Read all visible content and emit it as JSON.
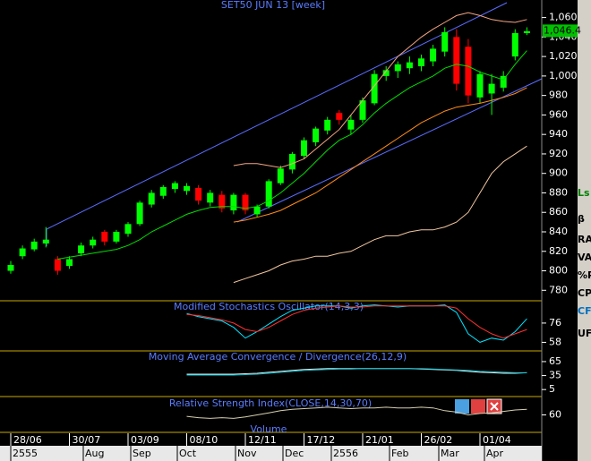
{
  "chart_data": [
    {
      "type": "candlestick",
      "title": "SET50 JUN 13   [week]",
      "categories": [
        "28/06",
        null,
        null,
        null,
        null,
        "30/07",
        null,
        null,
        null,
        null,
        "03/09",
        null,
        null,
        null,
        null,
        "08/10",
        null,
        null,
        null,
        null,
        "12/11",
        null,
        null,
        null,
        null,
        "17/12",
        null,
        null,
        null,
        null,
        "21/01",
        null,
        null,
        null,
        null,
        "26/02",
        null,
        null,
        null,
        null,
        "01/04",
        null,
        null,
        null,
        null
      ],
      "month_labels": [
        "2555",
        "Aug",
        "Sep",
        "Oct",
        "Nov",
        "Dec",
        "2556",
        "Feb",
        "Mar",
        "Apr"
      ],
      "open": [
        800,
        815,
        822,
        828,
        812,
        805,
        818,
        826,
        840,
        830,
        838,
        848,
        868,
        877,
        884,
        882,
        885,
        870,
        878,
        862,
        878,
        858,
        866,
        890,
        904,
        918,
        932,
        944,
        962,
        945,
        955,
        972,
        1000,
        1005,
        1008,
        1010,
        1015,
        1025,
        1040,
        1030,
        978,
        982,
        988,
        1020,
        1044
      ],
      "high": [
        810,
        826,
        833,
        845,
        815,
        815,
        829,
        835,
        842,
        842,
        850,
        872,
        883,
        888,
        892,
        890,
        888,
        883,
        882,
        880,
        880,
        868,
        894,
        908,
        922,
        937,
        948,
        958,
        965,
        960,
        978,
        1006,
        1010,
        1015,
        1020,
        1022,
        1032,
        1050,
        1048,
        1038,
        1005,
        1002,
        1005,
        1048,
        1050
      ],
      "low": [
        797,
        812,
        820,
        824,
        796,
        802,
        815,
        823,
        826,
        828,
        835,
        846,
        865,
        874,
        880,
        878,
        868,
        866,
        860,
        858,
        858,
        855,
        864,
        888,
        900,
        915,
        928,
        940,
        950,
        940,
        952,
        970,
        995,
        998,
        1002,
        1005,
        1010,
        1020,
        985,
        972,
        972,
        960,
        984,
        1016,
        1042
      ],
      "close": [
        806,
        823,
        830,
        832,
        800,
        812,
        826,
        832,
        830,
        840,
        848,
        870,
        880,
        886,
        890,
        887,
        872,
        880,
        864,
        878,
        862,
        866,
        892,
        905,
        920,
        934,
        946,
        955,
        955,
        955,
        975,
        1002,
        1006,
        1012,
        1014,
        1018,
        1028,
        1045,
        992,
        980,
        1002,
        992,
        1000,
        1044,
        1046
      ],
      "up_color": "#00ff00",
      "down_color": "#ff0000",
      "series": [
        {
          "color": "#00dd00",
          "values": [
            null,
            null,
            null,
            null,
            812,
            814,
            816,
            818,
            820,
            822,
            826,
            832,
            840,
            846,
            852,
            858,
            862,
            865,
            866,
            866,
            864,
            866,
            872,
            880,
            890,
            900,
            912,
            924,
            934,
            940,
            950,
            962,
            972,
            980,
            988,
            994,
            1000,
            1008,
            1012,
            1010,
            1004,
            1000,
            996,
            1012,
            1026
          ]
        },
        {
          "color": "#f4a582",
          "values": [
            null,
            null,
            null,
            null,
            null,
            null,
            null,
            null,
            null,
            null,
            null,
            null,
            null,
            null,
            null,
            null,
            null,
            null,
            null,
            908,
            910,
            910,
            908,
            906,
            910,
            915,
            925,
            935,
            945,
            960,
            975,
            990,
            1005,
            1020,
            1030,
            1040,
            1048,
            1055,
            1062,
            1065,
            1062,
            1058,
            1056,
            1055,
            1058
          ]
        },
        {
          "color": "#ff8c1a",
          "values": [
            null,
            null,
            null,
            null,
            null,
            null,
            null,
            null,
            null,
            null,
            null,
            null,
            null,
            null,
            null,
            null,
            null,
            null,
            null,
            850,
            852,
            855,
            858,
            862,
            868,
            874,
            880,
            888,
            896,
            904,
            912,
            920,
            928,
            936,
            944,
            952,
            958,
            964,
            968,
            970,
            972,
            975,
            978,
            982,
            988
          ]
        },
        {
          "color": "#f2c6a0",
          "values": [
            null,
            null,
            null,
            null,
            null,
            null,
            null,
            null,
            null,
            null,
            null,
            null,
            null,
            null,
            null,
            null,
            null,
            null,
            null,
            788,
            792,
            796,
            800,
            806,
            810,
            812,
            815,
            815,
            818,
            820,
            826,
            832,
            836,
            836,
            840,
            842,
            842,
            845,
            850,
            860,
            880,
            900,
            912,
            920,
            928
          ]
        }
      ],
      "ylim": [
        772,
        1078
      ],
      "yticks": [
        {
          "value": 780,
          "label": "780"
        },
        {
          "value": 800,
          "label": "800"
        },
        {
          "value": 820,
          "label": "820"
        },
        {
          "value": 840,
          "label": "840"
        },
        {
          "value": 860,
          "label": "860"
        },
        {
          "value": 880,
          "label": "880"
        },
        {
          "value": 900,
          "label": "900"
        },
        {
          "value": 920,
          "label": "920"
        },
        {
          "value": 940,
          "label": "940"
        },
        {
          "value": 960,
          "label": "960"
        },
        {
          "value": 980,
          "label": "980"
        },
        {
          "value": 1000,
          "label": "1,000"
        },
        {
          "value": 1020,
          "label": "1,020"
        },
        {
          "value": 1040,
          "label": "1,040"
        },
        {
          "value": 1060,
          "label": "1,060"
        }
      ],
      "last_price": {
        "value": 1046.4,
        "label": "1,046.4"
      }
    },
    {
      "type": "line",
      "title": "Modified Stochastics Oscillator(14,3,3)",
      "ylim": [
        50,
        96
      ],
      "yticks": [
        76,
        58
      ],
      "series": [
        {
          "color": "#00e5ff",
          "values": [
            null,
            null,
            null,
            null,
            null,
            null,
            null,
            null,
            null,
            null,
            null,
            null,
            null,
            null,
            null,
            85,
            82,
            80,
            78,
            72,
            62,
            68,
            75,
            82,
            88,
            90,
            92,
            92,
            92,
            90,
            92,
            93,
            92,
            91,
            92,
            92,
            92,
            93,
            86,
            66,
            58,
            62,
            60,
            68,
            80
          ]
        },
        {
          "color": "#ff3030",
          "values": [
            null,
            null,
            null,
            null,
            null,
            null,
            null,
            null,
            null,
            null,
            null,
            null,
            null,
            null,
            null,
            84,
            83,
            81,
            79,
            76,
            70,
            68,
            72,
            78,
            84,
            88,
            90,
            91,
            92,
            91,
            91,
            92,
            92,
            92,
            92,
            92,
            92,
            92,
            90,
            80,
            72,
            66,
            62,
            66,
            70
          ]
        }
      ]
    },
    {
      "type": "line",
      "title": "Moving Average Convergence / Divergence(26,12,9)",
      "ylim": [
        -10,
        86
      ],
      "yticks": [
        65,
        35,
        5
      ],
      "series": [
        {
          "color": "#e8e8e8",
          "values": [
            null,
            null,
            null,
            null,
            null,
            null,
            null,
            null,
            null,
            null,
            null,
            null,
            null,
            null,
            null,
            38,
            38,
            38,
            38,
            38,
            39,
            40,
            42,
            44,
            46,
            48,
            49,
            50,
            50,
            50,
            50,
            50,
            50,
            50,
            50,
            49,
            48,
            47,
            46,
            44,
            42,
            41,
            40,
            40,
            41
          ]
        },
        {
          "color": "#00c8d8",
          "values": [
            null,
            null,
            null,
            null,
            null,
            null,
            null,
            null,
            null,
            null,
            null,
            null,
            null,
            null,
            null,
            36,
            36,
            36,
            36,
            36,
            37,
            38,
            40,
            42,
            44,
            46,
            47,
            48,
            49,
            49,
            50,
            50,
            50,
            50,
            50,
            50,
            49,
            48,
            47,
            46,
            44,
            43,
            42,
            41,
            41
          ]
        }
      ]
    },
    {
      "type": "line",
      "title": "Relative Strength Index(CLOSE,14,30,70)",
      "ylim": [
        35,
        85
      ],
      "yticks": [
        60
      ],
      "series": [
        {
          "color": "#d8d0b0",
          "values": [
            null,
            null,
            null,
            null,
            null,
            null,
            null,
            null,
            null,
            null,
            null,
            null,
            null,
            null,
            null,
            58,
            56,
            55,
            56,
            55,
            57,
            60,
            63,
            66,
            68,
            69,
            70,
            71,
            70,
            69,
            70,
            70,
            71,
            70,
            70,
            71,
            70,
            66,
            64,
            60,
            62,
            63,
            65,
            67,
            68
          ]
        }
      ],
      "footer": "Volume"
    }
  ],
  "toolbar": [
    "Ls",
    "β",
    "RA",
    "VA",
    "%P",
    "CP",
    "CF",
    "UF"
  ]
}
